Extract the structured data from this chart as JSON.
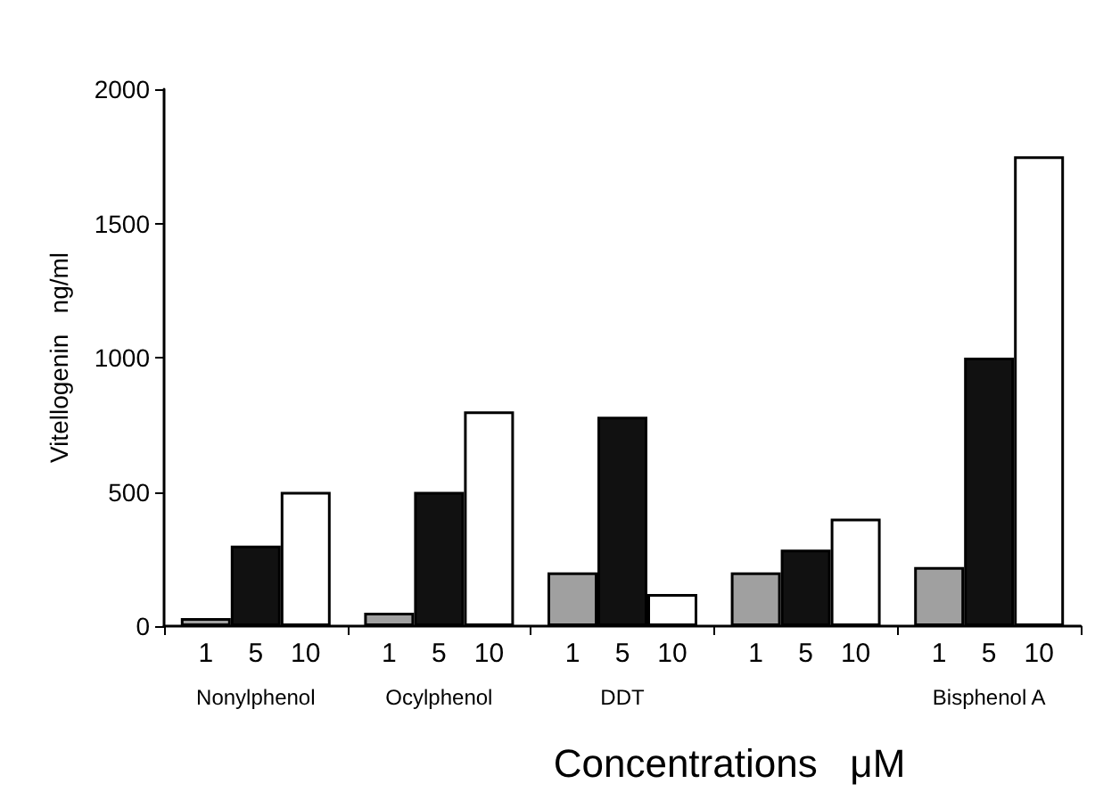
{
  "chart_data": {
    "type": "bar",
    "ylabel": "Vitellogenin   ng/ml",
    "xlabel": "Concentrations   μM",
    "categories": [
      "Nonylphenol",
      "Ocylphenol",
      "DDT",
      null,
      "Bisphenol A"
    ],
    "series": [
      {
        "name": "1",
        "color": "#a0a0a0",
        "values": [
          30,
          50,
          200,
          200,
          220
        ]
      },
      {
        "name": "5",
        "color": "#111111",
        "values": [
          300,
          500,
          780,
          285,
          1000
        ]
      },
      {
        "name": "10",
        "color": "#ffffff",
        "values": [
          500,
          800,
          120,
          400,
          1750
        ]
      }
    ],
    "ylim": [
      0,
      2000
    ],
    "yticks": [
      0,
      500,
      1000,
      1500,
      2000
    ],
    "grid": false,
    "legend": "bottom"
  }
}
